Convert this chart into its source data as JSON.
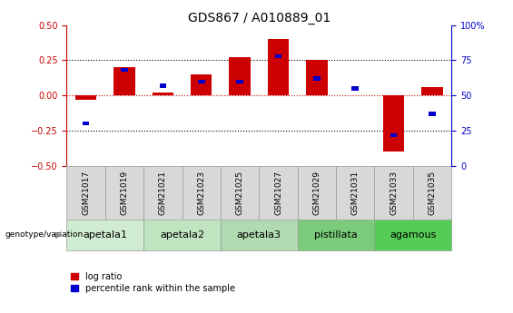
{
  "title": "GDS867 / A010889_01",
  "samples": [
    "GSM21017",
    "GSM21019",
    "GSM21021",
    "GSM21023",
    "GSM21025",
    "GSM21027",
    "GSM21029",
    "GSM21031",
    "GSM21033",
    "GSM21035"
  ],
  "log_ratio": [
    -0.03,
    0.2,
    0.02,
    0.15,
    0.27,
    0.4,
    0.25,
    0.0,
    -0.4,
    0.06
  ],
  "percentile_rank": [
    30,
    68,
    57,
    60,
    60,
    78,
    62,
    55,
    22,
    37
  ],
  "groups": [
    {
      "label": "apetala1",
      "samples": [
        "GSM21017",
        "GSM21019"
      ],
      "color": "#d0ecd0"
    },
    {
      "label": "apetala2",
      "samples": [
        "GSM21021",
        "GSM21023"
      ],
      "color": "#c0e4c0"
    },
    {
      "label": "apetala3",
      "samples": [
        "GSM21025",
        "GSM21027"
      ],
      "color": "#b0dbb0"
    },
    {
      "label": "pistillata",
      "samples": [
        "GSM21029",
        "GSM21031"
      ],
      "color": "#7acc7a"
    },
    {
      "label": "agamous",
      "samples": [
        "GSM21033",
        "GSM21035"
      ],
      "color": "#55cc55"
    }
  ],
  "ylim_left": [
    -0.5,
    0.5
  ],
  "ylim_right": [
    0,
    100
  ],
  "log_ratio_color": "#cc0000",
  "percentile_color": "#0000cc",
  "zero_line_color": "#cc0000",
  "grid_color": "#000000",
  "title_fontsize": 10,
  "tick_fontsize": 7,
  "sample_fontsize": 6.5,
  "group_label_fontsize": 8,
  "legend_fontsize": 7,
  "sample_box_color": "#d8d8d8",
  "sample_box_edge": "#999999"
}
